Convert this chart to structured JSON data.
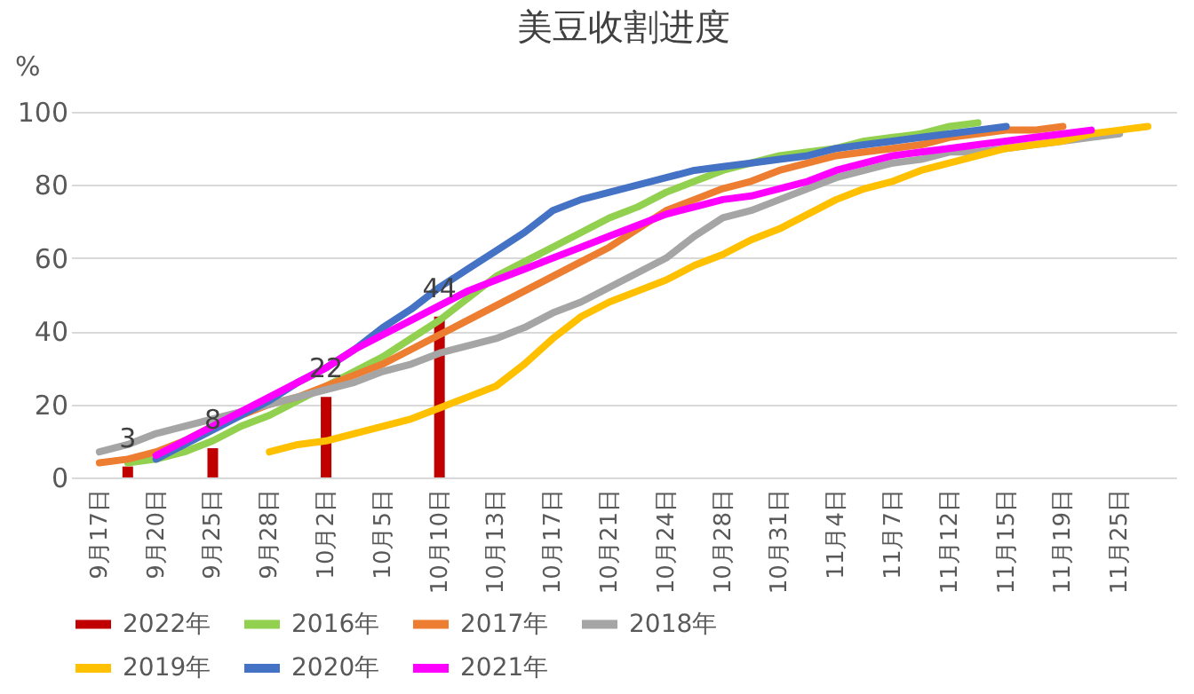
{
  "chart_data": {
    "type": "line",
    "title": "美豆收割进度",
    "ylabel": "%",
    "categories": [
      "9月17日",
      null,
      "9月20日",
      null,
      "9月25日",
      null,
      "9月28日",
      null,
      "10月2日",
      null,
      "10月5日",
      null,
      "10月10日",
      null,
      "10月13日",
      null,
      "10月17日",
      null,
      "10月21日",
      null,
      "10月24日",
      null,
      "10月28日",
      null,
      "10月31日",
      null,
      "11月4日",
      null,
      "11月7日",
      null,
      "11月12日",
      null,
      "11月15日",
      null,
      "11月19日",
      null,
      "11月25日",
      null
    ],
    "series": [
      {
        "name": "2022年",
        "type": "bar",
        "color": "#c00000",
        "values": [
          null,
          3,
          null,
          null,
          8,
          null,
          null,
          null,
          22,
          null,
          null,
          null,
          44,
          null,
          null,
          null,
          null,
          null,
          null,
          null,
          null,
          null,
          null,
          null,
          null,
          null,
          null,
          null,
          null,
          null,
          null,
          null,
          null,
          null,
          null,
          null,
          null,
          null
        ],
        "value_labels": [
          null,
          "3",
          null,
          null,
          "8",
          null,
          null,
          null,
          "22",
          null,
          null,
          null,
          "44",
          null,
          null,
          null,
          null,
          null,
          null,
          null,
          null,
          null,
          null,
          null,
          null,
          null,
          null,
          null,
          null,
          null,
          null,
          null,
          null,
          null,
          null,
          null,
          null,
          null
        ]
      },
      {
        "name": "2016年",
        "color": "#92d050",
        "values": [
          null,
          4,
          5,
          7,
          10,
          14,
          17,
          21,
          25,
          29,
          33,
          38,
          43,
          49,
          55,
          59,
          63,
          67,
          71,
          74,
          78,
          81,
          84,
          86,
          88,
          89,
          90,
          92,
          93,
          94,
          96,
          97,
          null,
          null,
          null,
          null,
          null,
          null
        ]
      },
      {
        "name": "2017年",
        "color": "#ed7d31",
        "values": [
          4,
          5,
          7,
          10,
          14,
          17,
          20,
          22,
          25,
          28,
          31,
          35,
          39,
          43,
          47,
          51,
          55,
          59,
          63,
          68,
          73,
          76,
          79,
          81,
          84,
          86,
          88,
          89,
          90,
          91,
          93,
          94,
          95,
          95,
          96,
          null,
          null,
          null
        ]
      },
      {
        "name": "2018年",
        "color": "#a5a5a5",
        "values": [
          7,
          9,
          12,
          14,
          16,
          18,
          20,
          22,
          24,
          26,
          29,
          31,
          34,
          36,
          38,
          41,
          45,
          48,
          52,
          56,
          60,
          66,
          71,
          73,
          76,
          79,
          82,
          84,
          86,
          87,
          89,
          89,
          90,
          91,
          92,
          93,
          94,
          null
        ]
      },
      {
        "name": "2019年",
        "color": "#ffc000",
        "values": [
          null,
          null,
          null,
          null,
          null,
          null,
          7,
          9,
          10,
          12,
          14,
          16,
          19,
          22,
          25,
          31,
          38,
          44,
          48,
          51,
          54,
          58,
          61,
          65,
          68,
          72,
          76,
          79,
          81,
          84,
          86,
          88,
          90,
          91,
          92,
          94,
          95,
          96
        ]
      },
      {
        "name": "2020年",
        "color": "#4472c4",
        "values": [
          null,
          null,
          5,
          9,
          13,
          17,
          21,
          26,
          30,
          35,
          41,
          46,
          52,
          57,
          62,
          67,
          73,
          76,
          78,
          80,
          82,
          84,
          85,
          86,
          87,
          88,
          90,
          91,
          92,
          93,
          94,
          95,
          96,
          null,
          null,
          null,
          null,
          null
        ]
      },
      {
        "name": "2021年",
        "color": "#ff00ff",
        "values": [
          null,
          null,
          6,
          10,
          14,
          18,
          22,
          26,
          30,
          35,
          39,
          43,
          47,
          51,
          54,
          57,
          60,
          63,
          66,
          69,
          72,
          74,
          76,
          77,
          79,
          81,
          84,
          86,
          88,
          89,
          90,
          91,
          92,
          93,
          94,
          95,
          null,
          null
        ]
      }
    ],
    "ylim": [
      0,
      100
    ],
    "yticks": [
      0,
      20,
      40,
      60,
      80,
      100
    ],
    "grid": "y",
    "legend": "bottom",
    "marker": "none",
    "line_style": "solid"
  }
}
